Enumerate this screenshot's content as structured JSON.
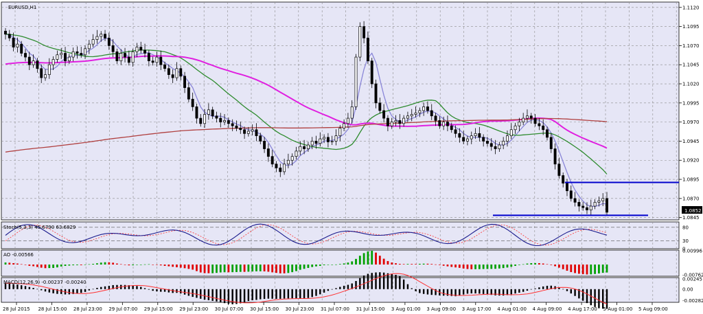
{
  "symbol_title": "EURUSD,H1",
  "chart_data": {
    "type": "candlestick",
    "symbol": "EURUSD",
    "timeframe": "H1",
    "price_ticks": [
      "1.1120",
      "1.1095",
      "1.1070",
      "1.1045",
      "1.1020",
      "1.0995",
      "1.0970",
      "1.0945",
      "1.0920",
      "1.0895",
      "1.0870",
      "1.0845"
    ],
    "price_range": [
      1.0842,
      1.1127
    ],
    "last_price": "1.0852",
    "time_labels": [
      "28 Jul 2015",
      "28 Jul 15:00",
      "28 Jul 23:00",
      "29 Jul 07:00",
      "29 Jul 15:00",
      "29 Jul 23:00",
      "30 Jul 07:00",
      "30 Jul 15:00",
      "30 Jul 23:00",
      "31 Jul 07:00",
      "31 Jul 15:00",
      "3 Aug 01:00",
      "3 Aug 09:00",
      "3 Aug 17:00",
      "4 Aug 01:00",
      "4 Aug 09:00",
      "4 Aug 17:00",
      "5 Aug 01:00",
      "5 Aug 09:00"
    ],
    "candle_closes": [
      1.1085,
      1.108,
      1.1068,
      1.1072,
      1.106,
      1.1055,
      1.1045,
      1.105,
      1.104,
      1.1028,
      1.1032,
      1.1045,
      1.1052,
      1.1058,
      1.106,
      1.105,
      1.1055,
      1.1062,
      1.106,
      1.1058,
      1.1066,
      1.1072,
      1.1078,
      1.1082,
      1.1085,
      1.108,
      1.107,
      1.1062,
      1.105,
      1.106,
      1.1055,
      1.1048,
      1.1062,
      1.1068,
      1.1064,
      1.106,
      1.105,
      1.1048,
      1.1055,
      1.1045,
      1.104,
      1.1032,
      1.1028,
      1.104,
      1.103,
      1.1015,
      1.1,
      1.099,
      1.0975,
      1.0968,
      1.098,
      1.0986,
      1.0978,
      1.0975,
      1.097,
      1.0972,
      1.0968,
      1.0965,
      1.0962,
      1.096,
      1.0955,
      1.0958,
      1.096,
      1.0952,
      1.0945,
      1.0935,
      1.0925,
      1.0915,
      1.091,
      1.0905,
      1.0915,
      1.092,
      1.0925,
      1.0932,
      1.0938,
      1.0935,
      1.094,
      1.0945,
      1.0942,
      1.0948,
      1.095,
      1.0944,
      1.0945,
      1.0952,
      1.0962,
      1.0968,
      1.0975,
      1.099,
      1.1055,
      1.1095,
      1.108,
      1.105,
      1.102,
      1.0995,
      1.0985,
      1.0975,
      1.0965,
      1.097,
      1.0972,
      1.0968,
      1.0975,
      1.0978,
      1.098,
      1.0982,
      1.0985,
      1.099,
      1.0985,
      1.0978,
      1.0972,
      1.0965,
      1.097,
      1.0965,
      1.096,
      1.0955,
      1.095,
      1.0945,
      1.0948,
      1.0952,
      1.0955,
      1.095,
      1.0945,
      1.0942,
      1.0938,
      1.0935,
      1.094,
      1.0945,
      1.0952,
      1.096,
      1.0965,
      1.097,
      1.0975,
      1.0978,
      1.0975,
      1.0968,
      1.0965,
      1.096,
      1.095,
      1.0935,
      1.0915,
      1.09,
      1.089,
      1.088,
      1.087,
      1.0865,
      1.086,
      1.0858,
      1.0855,
      1.086,
      1.0865,
      1.0867,
      1.087,
      1.0852
    ],
    "moving_averages": [
      {
        "name": "fast",
        "color": "#8a86d8",
        "period": 5
      },
      {
        "name": "medium",
        "color": "#2e8b2e",
        "period": 21
      },
      {
        "name": "slow",
        "color": "#e020e0",
        "period": 50
      },
      {
        "name": "long",
        "color": "#b04040",
        "period": 200
      }
    ],
    "horizontal_lines": [
      1.0891,
      1.0848
    ],
    "stochastic": {
      "label": "Stoch(5,3,3) 45.6790 63.6829",
      "ticks": [
        "80",
        "30",
        "0"
      ],
      "range": [
        0,
        100
      ],
      "levels": [
        80,
        30
      ]
    },
    "ao": {
      "label": "AO -0.00566",
      "ticks": [
        "0.00996",
        "-0.00762"
      ],
      "range": [
        -0.0085,
        0.0105
      ]
    },
    "macd": {
      "label": "MACD(12,26,9) -0.00237 -0.00240",
      "ticks": [
        "0.00245",
        "0.00",
        "-0.00282"
      ],
      "range": [
        -0.0032,
        0.0028
      ]
    },
    "colors": {
      "candle": "#000000",
      "bull_body": "#ffffff",
      "grid": "#8c8c8c",
      "plot_bg": "#e6e6f6",
      "hline": "#0000cc",
      "ao_up": "#00a000",
      "ao_down": "#e00000",
      "stoch_main": "#1a1a8c",
      "stoch_signal": "#ff3030",
      "macd_hist": "#000000",
      "macd_signal": "#ff3030"
    }
  }
}
